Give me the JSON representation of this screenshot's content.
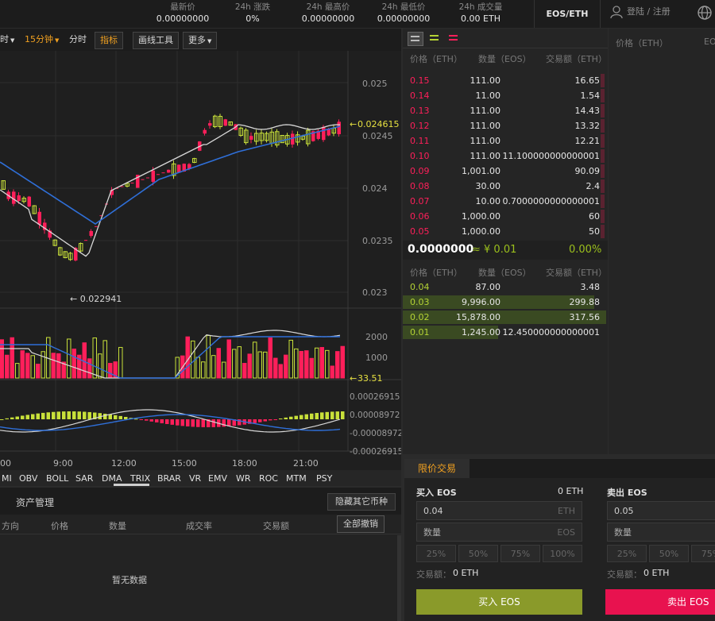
{
  "header": {
    "stats": [
      {
        "label": "最新价",
        "value": "0.00000000"
      },
      {
        "label": "24h 涨跌",
        "value": "0%"
      },
      {
        "label": "24h 最高价",
        "value": "0.00000000"
      },
      {
        "label": "24h 最低价",
        "value": "0.00000000"
      },
      {
        "label": "24h 成交量",
        "value": "0.00 ETH"
      }
    ],
    "pair": "EOS/ETH",
    "login": "登陆 / 注册"
  },
  "toolbar": {
    "timeframe_prefix": "时",
    "interval": "15分钟",
    "timeshare": "分时",
    "indicators": "指标",
    "draw_tools": "画线工具",
    "more": "更多"
  },
  "chart": {
    "price_ticks": [
      "0.025",
      "0.0245",
      "0.024",
      "0.0235",
      "0.023"
    ],
    "last_price_label": "0.024615",
    "low_label": "0.022941",
    "volume_ticks": [
      "2000",
      "1000"
    ],
    "volume_label": "33.51",
    "macd_ticks": [
      "0.00026915",
      "0.00008972",
      "-0.00008972",
      "-0.00026915"
    ],
    "time_ticks": [
      "00",
      "9:00",
      "12:00",
      "15:00",
      "18:00",
      "21:00"
    ],
    "indicator_tabs": [
      "MI",
      "OBV",
      "BOLL",
      "SAR",
      "DMA",
      "TRIX",
      "BRAR",
      "VR",
      "EMV",
      "WR",
      "ROC",
      "MTM",
      "PSY"
    ]
  },
  "orders": {
    "tab": "资产管理",
    "hide_btn": "隐藏其它币种",
    "cancel_all": "全部撤销",
    "columns": [
      "方向",
      "价格",
      "数量",
      "成交率",
      "交易额"
    ],
    "empty": "暂无数据"
  },
  "orderbook": {
    "headers": [
      "价格（ETH）",
      "数量（EOS）",
      "交易额（ETH）"
    ],
    "asks": [
      {
        "price": "0.15",
        "qty": "111.00",
        "total": "16.65",
        "depth": 0.02
      },
      {
        "price": "0.14",
        "qty": "11.00",
        "total": "1.54",
        "depth": 0.02
      },
      {
        "price": "0.13",
        "qty": "111.00",
        "total": "14.43",
        "depth": 0.02
      },
      {
        "price": "0.12",
        "qty": "111.00",
        "total": "13.32",
        "depth": 0.02
      },
      {
        "price": "0.11",
        "qty": "111.00",
        "total": "12.21",
        "depth": 0.02
      },
      {
        "price": "0.10",
        "qty": "111.00",
        "total": "11.100000000000001",
        "depth": 0.02
      },
      {
        "price": "0.09",
        "qty": "1,001.00",
        "total": "90.09",
        "depth": 0.02
      },
      {
        "price": "0.08",
        "qty": "30.00",
        "total": "2.4",
        "depth": 0.02
      },
      {
        "price": "0.07",
        "qty": "10.00",
        "total": "0.7000000000000001",
        "depth": 0.02
      },
      {
        "price": "0.06",
        "qty": "1,000.00",
        "total": "60",
        "depth": 0.02
      },
      {
        "price": "0.05",
        "qty": "1,000.00",
        "total": "50",
        "depth": 0.02
      }
    ],
    "mid_price": "0.0000000",
    "mid_cny": "≈ ¥ 0.01",
    "mid_change": "0.00%",
    "bids": [
      {
        "price": "0.04",
        "qty": "87.00",
        "total": "3.48",
        "depth": 0.0
      },
      {
        "price": "0.03",
        "qty": "9,996.00",
        "total": "299.88",
        "depth": 0.94
      },
      {
        "price": "0.02",
        "qty": "15,878.00",
        "total": "317.56",
        "depth": 1.0
      },
      {
        "price": "0.01",
        "qty": "1,245.00",
        "total": "12.450000000000001",
        "depth": 0.47
      }
    ]
  },
  "trades": {
    "header_price": "价格（ETH）",
    "header_qty": "EO"
  },
  "trade_panel": {
    "tab": "限价交易",
    "buy": {
      "title": "买入 EOS",
      "balance": "0 ETH",
      "price": "0.04",
      "price_unit": "ETH",
      "qty_placeholder": "数量",
      "qty_unit": "EOS",
      "amount_label": "交易额：",
      "amount_value": "0 ETH",
      "button": "买入 EOS"
    },
    "sell": {
      "title": "卖出 EOS",
      "price": "0.05",
      "qty_placeholder": "数量",
      "amount_label": "交易额：",
      "amount_value": "0 ETH",
      "button": "卖出 EOS"
    },
    "percents": [
      "25%",
      "50%",
      "75%",
      "100%"
    ]
  },
  "colors": {
    "ask": "#ff1f5a",
    "bid": "#b4d334",
    "accent": "#f0a020",
    "buy_btn": "#8a9a2a",
    "sell_btn": "#e8124f"
  }
}
